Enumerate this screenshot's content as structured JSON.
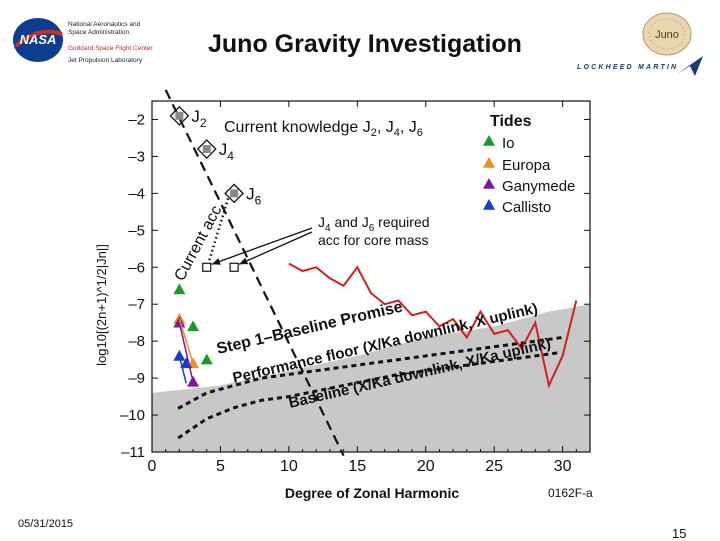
{
  "header": {
    "org_line1": "National Aeronautics and",
    "org_line2": "Space Administration",
    "center_red": "Goddard Space Flight Center",
    "jpl": "Jet Propulsion Laboratory",
    "title": "Juno Gravity Investigation",
    "nasa_logo_text": "NASA",
    "juno_logo_text": "Juno",
    "lockheed_text": "LOCKHEED MARTIN"
  },
  "colors": {
    "io": "#1a9a2a",
    "europa": "#f0901a",
    "ganymede": "#7a1a9a",
    "callisto": "#1a3ad0",
    "gray_region": "#c8c8c8",
    "red_line": "#d02020"
  },
  "chart_data": {
    "type": "line",
    "xlabel": "Degree of Zonal Harmonic",
    "ylabel": "log10[(2n+1)^1/2|Jn|]",
    "xlim": [
      0,
      32
    ],
    "ylim": [
      -11,
      -1.5
    ],
    "xticks": [
      "0",
      "5",
      "10",
      "15",
      "20",
      "25",
      "30"
    ],
    "yticks": [
      "–2",
      "–3",
      "–4",
      "–5",
      "–6",
      "–7",
      "–8",
      "–9",
      "–10",
      "–11"
    ],
    "figure_id": "0162F-a",
    "known": [
      {
        "n": 2,
        "value": -1.9,
        "label": "J",
        "sub": "2"
      },
      {
        "n": 4,
        "value": -2.8,
        "label": "J",
        "sub": "4"
      },
      {
        "n": 6,
        "value": -4.0,
        "label": "J",
        "sub": "6"
      }
    ],
    "required_points": [
      {
        "n": 4,
        "value": -6.0
      },
      {
        "n": 6,
        "value": -6.0
      }
    ],
    "annotations": {
      "current_knowledge": "Current knowledge J",
      "ck_sub1": "2",
      "ck_sep1": ", J",
      "ck_sub2": "4",
      "ck_sep2": ", J",
      "ck_sub3": "6",
      "required_line1_pre": "J",
      "required_line1_sub": "4",
      "required_line1_mid": " and J",
      "required_line1_sub2": "6",
      "required_line1_post": " required",
      "required_line2": "acc for core mass",
      "current_acc": "Current acc",
      "step1": "Step 1–Baseline Promise",
      "perf_floor": "Performance floor (X/Ka downlink, X uplink)",
      "baseline": "Baseline (X/Ka downlink, X/Ka uplink)"
    },
    "tides": {
      "title": "Tides",
      "entries": [
        "Io",
        "Europa",
        "Ganymede",
        "Callisto"
      ],
      "points": {
        "Io": [
          [
            2,
            -6.6
          ],
          [
            3,
            -7.6
          ],
          [
            4,
            -8.5
          ]
        ],
        "Europa": [
          [
            2,
            -7.4
          ],
          [
            3,
            -8.6
          ]
        ],
        "Ganymede": [
          [
            2,
            -7.5
          ],
          [
            3,
            -9.1
          ]
        ],
        "Callisto": [
          [
            2,
            -8.4
          ],
          [
            2.5,
            -8.6
          ]
        ]
      }
    },
    "baseline_promise_line": {
      "n": [
        10,
        11,
        12,
        13,
        14,
        15,
        16,
        17,
        18,
        19,
        20,
        21,
        22,
        23,
        24,
        25,
        26,
        27,
        28,
        29,
        30,
        31
      ],
      "values": [
        -5.9,
        -6.1,
        -6.0,
        -6.3,
        -6.5,
        -6.0,
        -6.7,
        -7.0,
        -6.9,
        -7.3,
        -7.2,
        -7.6,
        -7.4,
        -7.9,
        -7.2,
        -7.8,
        -7.7,
        -8.2,
        -7.5,
        -9.2,
        -8.4,
        -6.9
      ]
    },
    "gray_region_top": {
      "n": [
        0,
        5,
        10,
        15,
        20,
        25,
        29,
        32
      ],
      "values": [
        -9.4,
        -9.2,
        -8.8,
        -8.4,
        -7.9,
        -7.6,
        -7.2,
        -7.0
      ]
    },
    "perf_floor_curve": {
      "n": [
        2,
        4,
        6,
        8,
        10,
        14,
        18,
        22,
        26,
        30
      ],
      "values": [
        -9.8,
        -9.4,
        -9.2,
        -9.0,
        -8.9,
        -8.7,
        -8.5,
        -8.3,
        -8.1,
        -7.9
      ]
    },
    "baseline_curve": {
      "n": [
        2,
        4,
        6,
        8,
        10,
        14,
        18,
        22,
        26,
        30
      ],
      "values": [
        -10.6,
        -10.1,
        -9.8,
        -9.6,
        -9.5,
        -9.2,
        -8.9,
        -8.7,
        -8.5,
        -8.3
      ]
    },
    "kaula_line": {
      "n": [
        1,
        14
      ],
      "values": [
        -1.2,
        -11.1
      ]
    }
  },
  "footer": {
    "date": "05/31/2015",
    "page": "15"
  }
}
